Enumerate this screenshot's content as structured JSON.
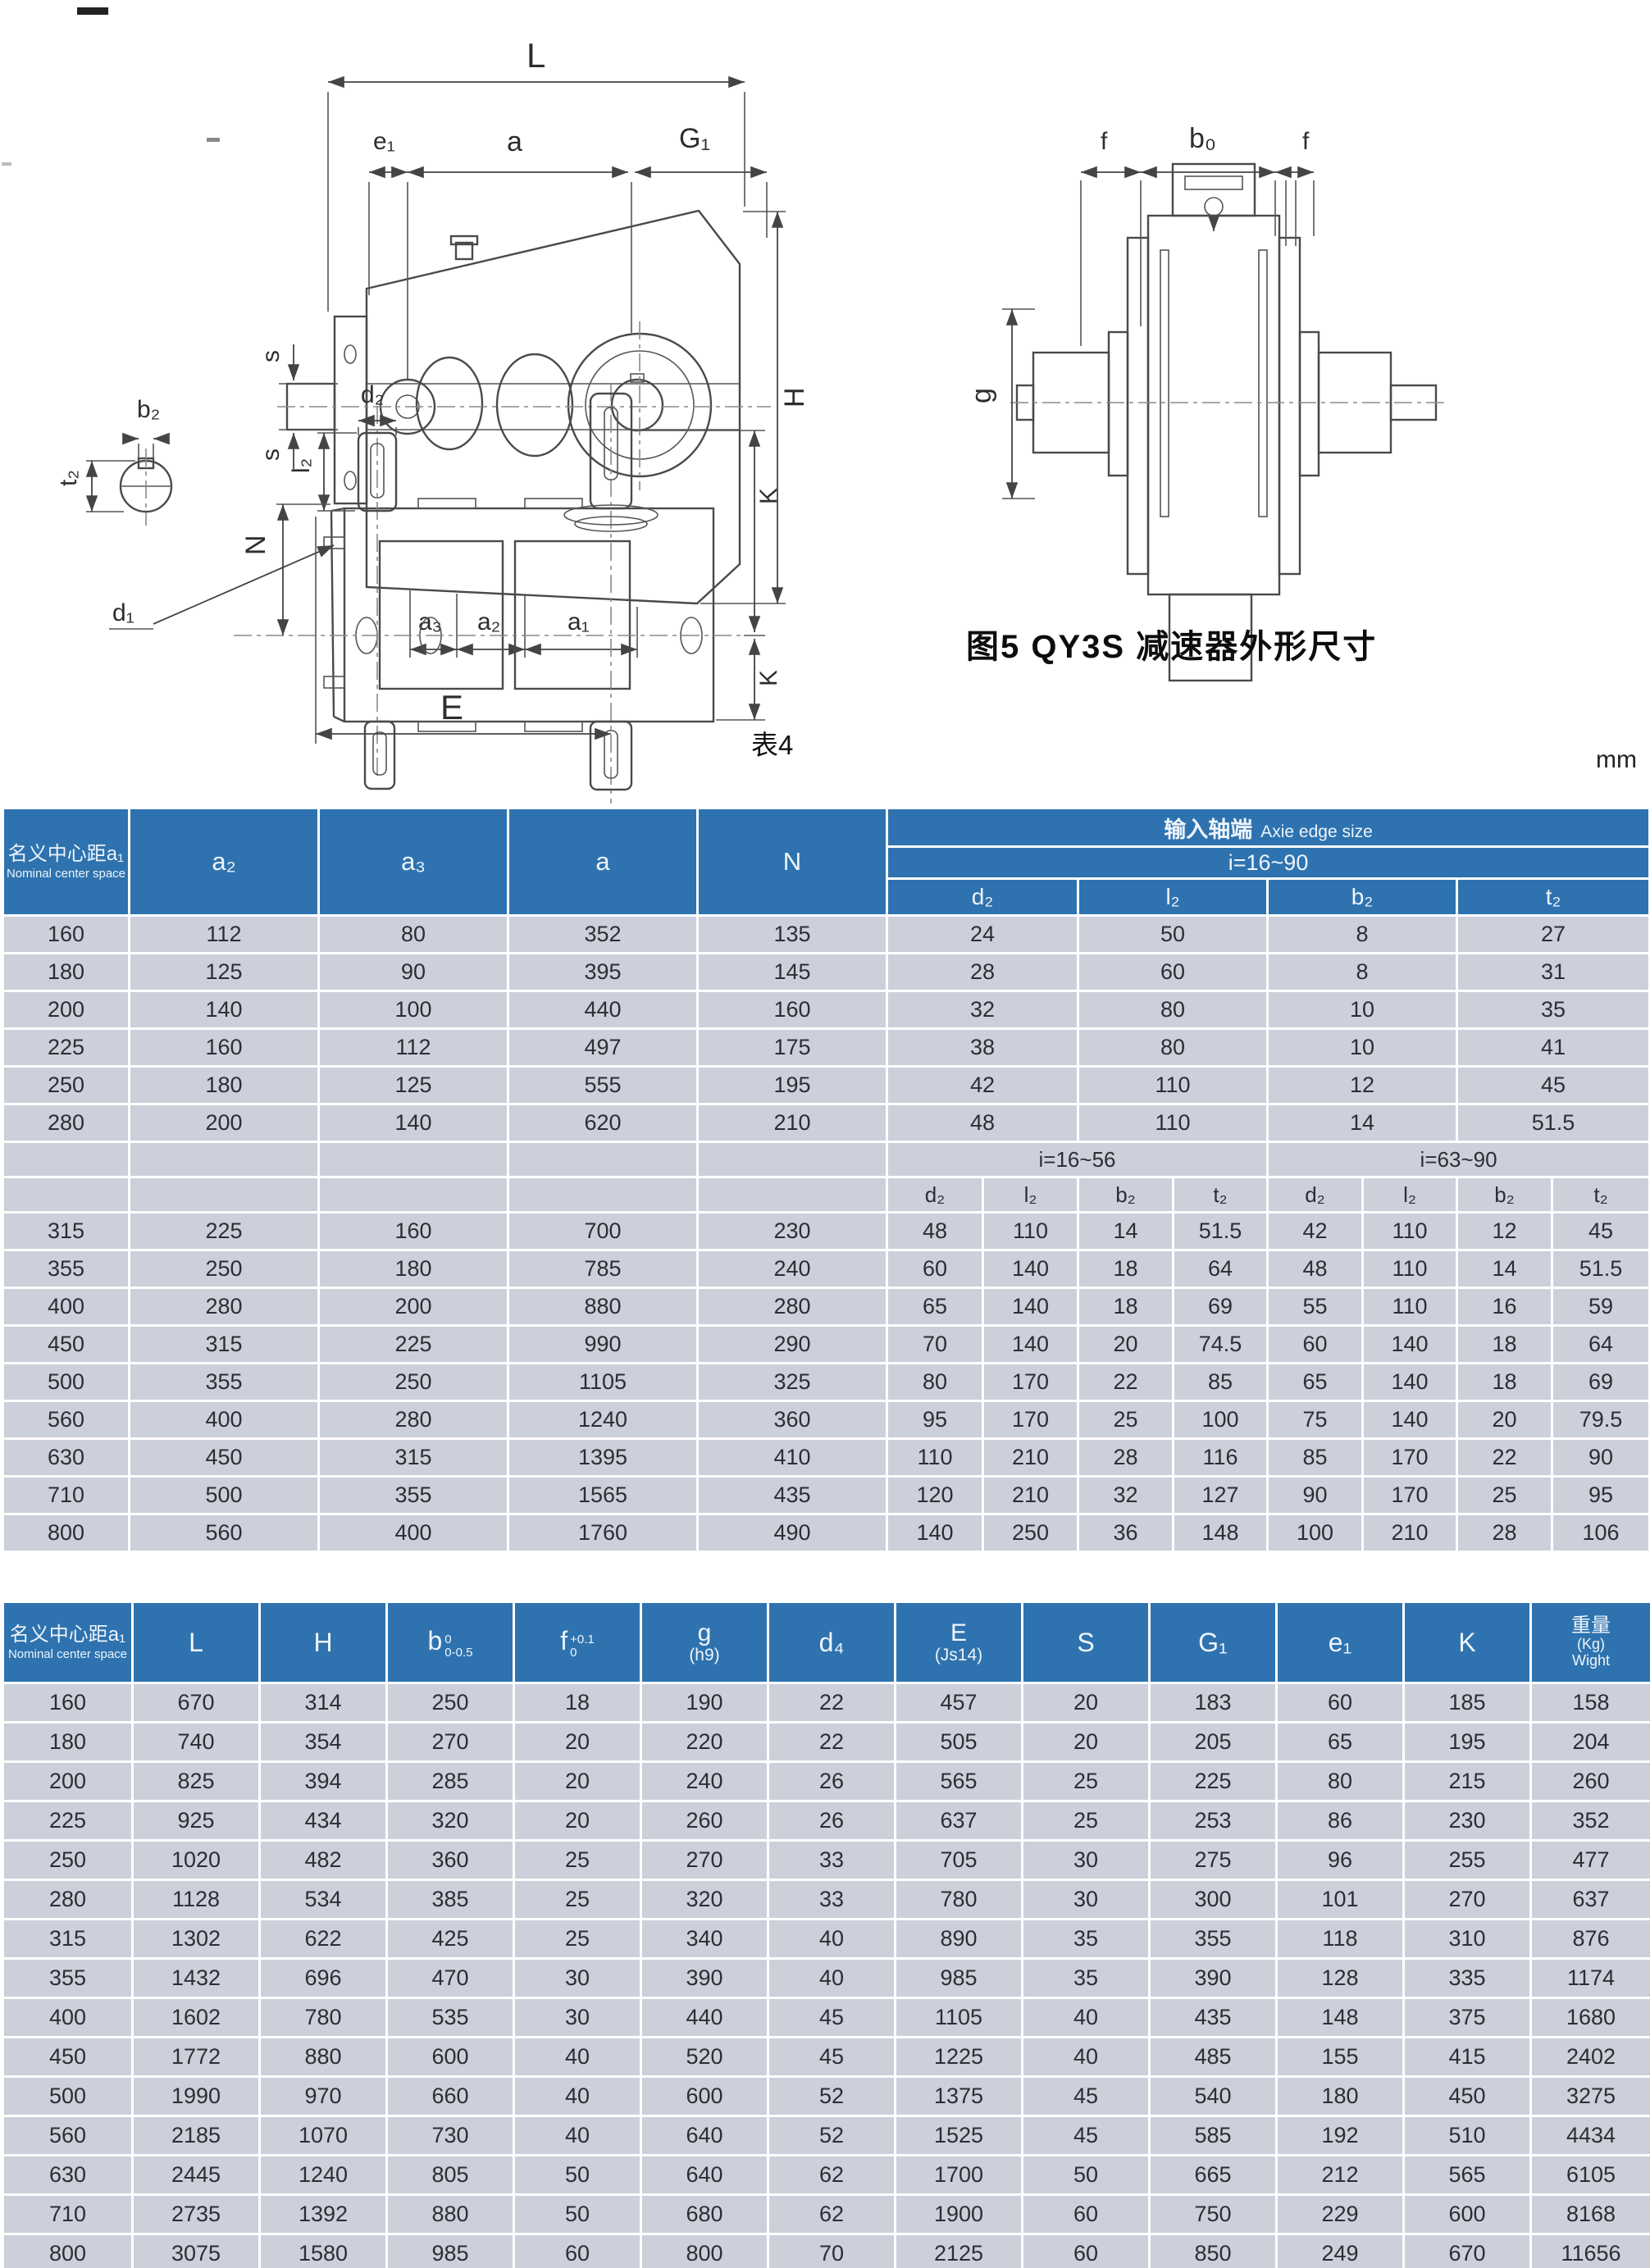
{
  "captions": {
    "figure": "图5 QY3S 减速器外形尺寸",
    "table_tag": "表4",
    "unit": "mm"
  },
  "diag_a": {
    "L": "L",
    "e1": "e₁",
    "a": "a",
    "G1": "G₁",
    "s_top": "s",
    "s_bottom": "s",
    "a3": "a₃",
    "a2": "a₂",
    "a1": "a₁",
    "H": "H"
  },
  "diag_b": {
    "f_left": "f",
    "b0": "b₀",
    "f_right": "f",
    "g": "g"
  },
  "diag_c": {
    "b2": "b₂",
    "t2": "t₂",
    "d2": "d₂",
    "l2": "l₂",
    "N": "N",
    "d1": "d₁",
    "K_top": "K",
    "K_bottom": "K",
    "E": "E"
  },
  "table1": {
    "col_a1_zh": "名义中心距a₁",
    "col_a1_en": "Nominal center space",
    "col_a2": "a₂",
    "col_a3": "a₃",
    "col_a": "a",
    "col_N": "N",
    "group_zh": "输入轴端",
    "group_en": "Axie edge size",
    "range_all": "i=16~90",
    "range_low": "i=16~56",
    "range_high": "i=63~90",
    "sub_d2": "d₂",
    "sub_l2": "l₂",
    "sub_b2": "b₂",
    "sub_t2": "t₂",
    "rows_single": [
      [
        160,
        112,
        80,
        352,
        135,
        24,
        50,
        8,
        27
      ],
      [
        180,
        125,
        90,
        395,
        145,
        28,
        60,
        8,
        31
      ],
      [
        200,
        140,
        100,
        440,
        160,
        32,
        80,
        10,
        35
      ],
      [
        225,
        160,
        112,
        497,
        175,
        38,
        80,
        10,
        41
      ],
      [
        250,
        180,
        125,
        555,
        195,
        42,
        110,
        12,
        45
      ],
      [
        280,
        200,
        140,
        620,
        210,
        48,
        110,
        14,
        51.5
      ]
    ],
    "rows_split": [
      [
        315,
        225,
        160,
        700,
        230,
        48,
        110,
        14,
        51.5,
        42,
        110,
        12,
        45
      ],
      [
        355,
        250,
        180,
        785,
        240,
        60,
        140,
        18,
        64,
        48,
        110,
        14,
        51.5
      ],
      [
        400,
        280,
        200,
        880,
        280,
        65,
        140,
        18,
        69,
        55,
        110,
        16,
        59
      ],
      [
        450,
        315,
        225,
        990,
        290,
        70,
        140,
        20,
        74.5,
        60,
        140,
        18,
        64
      ],
      [
        500,
        355,
        250,
        1105,
        325,
        80,
        170,
        22,
        85,
        65,
        140,
        18,
        69
      ],
      [
        560,
        400,
        280,
        1240,
        360,
        95,
        170,
        25,
        100,
        75,
        140,
        20,
        79.5
      ],
      [
        630,
        450,
        315,
        1395,
        410,
        110,
        210,
        28,
        116,
        85,
        170,
        22,
        90
      ],
      [
        710,
        500,
        355,
        1565,
        435,
        120,
        210,
        32,
        127,
        90,
        170,
        25,
        95
      ],
      [
        800,
        560,
        400,
        1760,
        490,
        140,
        250,
        36,
        148,
        100,
        210,
        28,
        106
      ]
    ]
  },
  "table2": {
    "h_a1_zh": "名义中心距a₁",
    "h_a1_en": "Nominal center space",
    "h_L": "L",
    "h_H": "H",
    "h_b_base": "b",
    "h_b_sup": "0",
    "h_b_sub": "0-0.5",
    "h_f_base": "f",
    "h_f_sup": "+0.1",
    "h_f_sub": "0",
    "h_g1": "g",
    "h_g2": "(h9)",
    "h_d4": "d₄",
    "h_E1": "E",
    "h_E2": "(Js14)",
    "h_S": "S",
    "h_G1": "G₁",
    "h_e1": "e₁",
    "h_K": "K",
    "h_w_zh": "重量",
    "h_w_kg": "(Kg)",
    "h_w_en": "Wight",
    "rows": [
      [
        160,
        670,
        314,
        250,
        18,
        190,
        22,
        457,
        20,
        183,
        60,
        185,
        158
      ],
      [
        180,
        740,
        354,
        270,
        20,
        220,
        22,
        505,
        20,
        205,
        65,
        195,
        204
      ],
      [
        200,
        825,
        394,
        285,
        20,
        240,
        26,
        565,
        25,
        225,
        80,
        215,
        260
      ],
      [
        225,
        925,
        434,
        320,
        20,
        260,
        26,
        637,
        25,
        253,
        86,
        230,
        352
      ],
      [
        250,
        1020,
        482,
        360,
        25,
        270,
        33,
        705,
        30,
        275,
        96,
        255,
        477
      ],
      [
        280,
        1128,
        534,
        385,
        25,
        320,
        33,
        780,
        30,
        300,
        101,
        270,
        637
      ],
      [
        315,
        1302,
        622,
        425,
        25,
        340,
        40,
        890,
        35,
        355,
        118,
        310,
        876
      ],
      [
        355,
        1432,
        696,
        470,
        30,
        390,
        40,
        985,
        35,
        390,
        128,
        335,
        1174
      ],
      [
        400,
        1602,
        780,
        535,
        30,
        440,
        45,
        1105,
        40,
        435,
        148,
        375,
        1680
      ],
      [
        450,
        1772,
        880,
        600,
        40,
        520,
        45,
        1225,
        40,
        485,
        155,
        415,
        2402
      ],
      [
        500,
        1990,
        970,
        660,
        40,
        600,
        52,
        1375,
        45,
        540,
        180,
        450,
        3275
      ],
      [
        560,
        2185,
        1070,
        730,
        40,
        640,
        52,
        1525,
        45,
        585,
        192,
        510,
        4434
      ],
      [
        630,
        2445,
        1240,
        805,
        50,
        640,
        62,
        1700,
        50,
        665,
        212,
        565,
        6105
      ],
      [
        710,
        2735,
        1392,
        880,
        50,
        680,
        62,
        1900,
        60,
        750,
        229,
        600,
        8168
      ],
      [
        800,
        3075,
        1580,
        985,
        60,
        800,
        70,
        2125,
        60,
        850,
        249,
        670,
        11656
      ]
    ]
  }
}
